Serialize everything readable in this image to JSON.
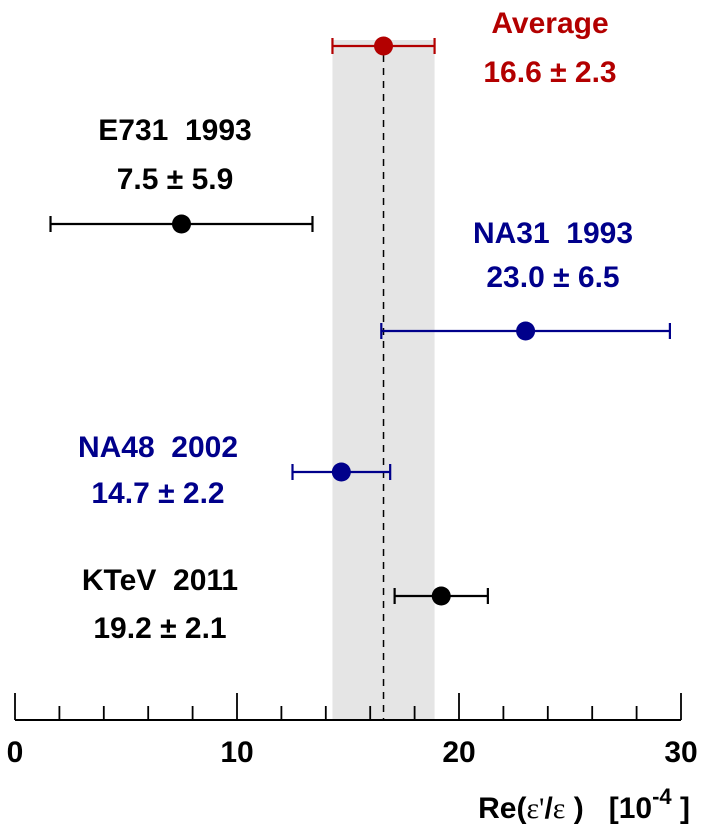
{
  "chart_data": {
    "type": "scatter",
    "xlim": [
      0,
      30
    ],
    "xticks": [
      0,
      10,
      20,
      30
    ],
    "xticks_labels": [
      "0",
      "10",
      "20",
      "30"
    ],
    "minor_tick_step": 2,
    "xlabel": {
      "prefix": "Re(",
      "eps_prime": "ε'",
      "slash": "/",
      "eps": "ε",
      "suffix": " )",
      "units_open": "[10",
      "units_exp": "-4",
      "units_close": " ]"
    },
    "band": {
      "low": 14.3,
      "high": 18.9,
      "center": 16.6,
      "color": "#e5e5e5"
    },
    "points": [
      {
        "name": "Average",
        "year": "",
        "value": 16.6,
        "error": 2.3,
        "value_text": "16.6",
        "pm": "±",
        "error_text": "2.3",
        "color": "#b30000"
      },
      {
        "name": "E731",
        "year": "1993",
        "value": 7.5,
        "error": 5.9,
        "value_text": "7.5",
        "pm": "±",
        "error_text": "5.9",
        "color": "#000000"
      },
      {
        "name": "NA31",
        "year": "1993",
        "value": 23.0,
        "error": 6.5,
        "value_text": "23.0",
        "pm": "±",
        "error_text": "6.5",
        "color": "#00008b"
      },
      {
        "name": "NA48",
        "year": "2002",
        "value": 14.7,
        "error": 2.2,
        "value_text": "14.7",
        "pm": "±",
        "error_text": "2.2",
        "color": "#00008b"
      },
      {
        "name": "KTeV",
        "year": "2011",
        "value": 19.2,
        "error": 2.1,
        "value_text": "19.2",
        "pm": "±",
        "error_text": "2.1",
        "color": "#000000"
      }
    ]
  }
}
